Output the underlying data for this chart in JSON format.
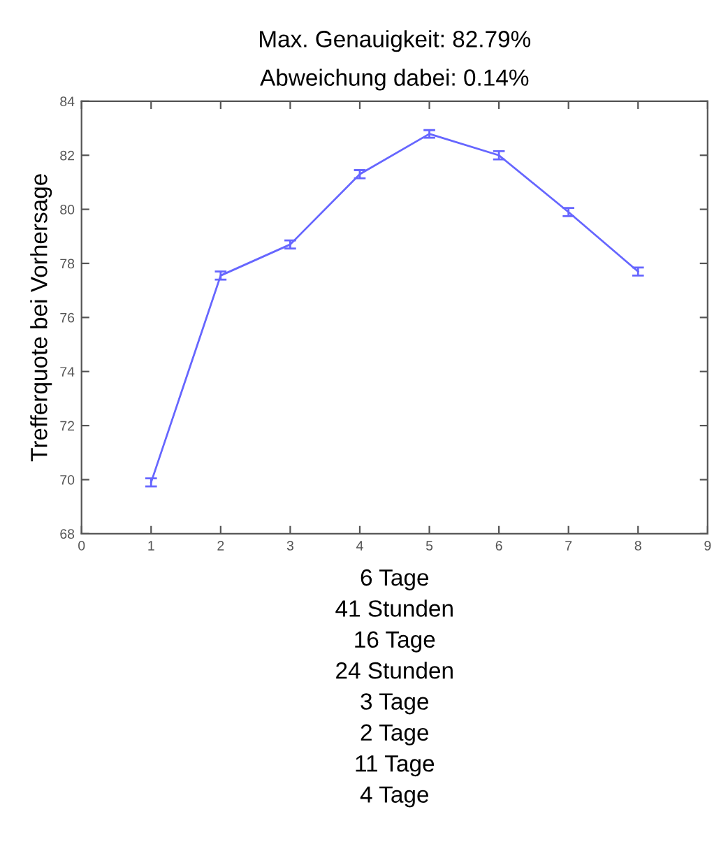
{
  "chart_data": {
    "type": "line",
    "title": "Max. Genauigkeit: 82.79%\nAbweichung dabei: 0.14%",
    "xlabel": "6 Tage\n41 Stunden\n16 Tage\n24 Stunden\n3 Tage\n2 Tage\n11 Tage\n4 Tage",
    "ylabel": "Trefferquote bei Vorhersage",
    "x": [
      1,
      2,
      3,
      4,
      5,
      6,
      7,
      8
    ],
    "series": [
      {
        "color": "#6666ff",
        "values": [
          69.9,
          77.55,
          78.7,
          81.3,
          82.79,
          82.0,
          79.9,
          77.7
        ],
        "errors": [
          0.15,
          0.15,
          0.15,
          0.15,
          0.14,
          0.15,
          0.15,
          0.15
        ]
      }
    ],
    "xlim": [
      0,
      9
    ],
    "xticks": [
      0,
      1,
      2,
      3,
      4,
      5,
      6,
      7,
      8,
      9
    ],
    "ylim": [
      68,
      84
    ],
    "yticks": [
      68,
      70,
      72,
      74,
      76,
      78,
      80,
      82,
      84
    ],
    "grid": false,
    "marker": "none",
    "line_style": "solid"
  }
}
